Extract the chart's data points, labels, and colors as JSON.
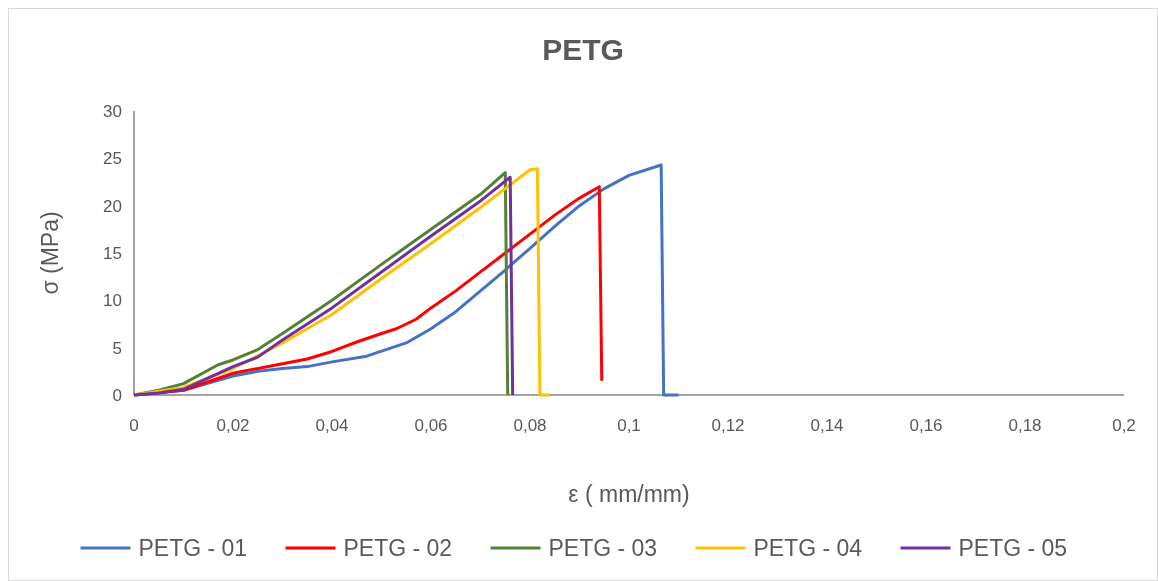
{
  "chart_data": {
    "type": "line",
    "title": "PETG",
    "xlabel": "ε ( mm/mm)",
    "ylabel": "σ (MPa)",
    "xlim": [
      0,
      0.2
    ],
    "ylim": [
      0,
      30
    ],
    "xticks": [
      0,
      {
        "value": 0.02,
        "label": "0,02"
      },
      {
        "value": 0.04,
        "label": "0,04"
      },
      {
        "value": 0.06,
        "label": "0,06"
      },
      {
        "value": 0.08,
        "label": "0,08"
      },
      {
        "value": 0.1,
        "label": "0,1"
      },
      {
        "value": 0.12,
        "label": "0,12"
      },
      {
        "value": 0.14,
        "label": "0,14"
      },
      {
        "value": 0.16,
        "label": "0,16"
      },
      {
        "value": 0.18,
        "label": "0,18"
      },
      {
        "value": 0.2,
        "label": "0,2"
      }
    ],
    "yticks": [
      0,
      5,
      10,
      15,
      20,
      25,
      30
    ],
    "grid": false,
    "legend": "bottom",
    "marker": "none",
    "line_style": "solid",
    "series": [
      {
        "name": "PETG - 01",
        "color": "#4472c4",
        "x": [
          0,
          0.01,
          0.02,
          0.025,
          0.03,
          0.035,
          0.04,
          0.047,
          0.055,
          0.06,
          0.065,
          0.07,
          0.075,
          0.08,
          0.085,
          0.09,
          0.095,
          0.1,
          0.1065,
          0.107,
          0.11
        ],
        "values": [
          0,
          0.5,
          2,
          2.5,
          2.8,
          3,
          3.5,
          4.1,
          5.5,
          7,
          8.8,
          11,
          13.2,
          15.5,
          17.8,
          20,
          21.8,
          23.2,
          24.3,
          0,
          0
        ]
      },
      {
        "name": "PETG - 02",
        "color": "#ff0000",
        "x": [
          0,
          0.01,
          0.02,
          0.03,
          0.035,
          0.04,
          0.045,
          0.05,
          0.053,
          0.057,
          0.06,
          0.065,
          0.07,
          0.075,
          0.08,
          0.085,
          0.09,
          0.094,
          0.0945
        ],
        "values": [
          0,
          0.5,
          2.3,
          3.3,
          3.8,
          4.6,
          5.6,
          6.5,
          7,
          8,
          9.2,
          11,
          13,
          15,
          17,
          19,
          20.8,
          22,
          1.5
        ]
      },
      {
        "name": "PETG - 03",
        "color": "#548235",
        "x": [
          0,
          0.005,
          0.01,
          0.017,
          0.02,
          0.025,
          0.03,
          0.04,
          0.05,
          0.06,
          0.07,
          0.075,
          0.0755
        ],
        "values": [
          0,
          0.5,
          1.2,
          3.2,
          3.7,
          4.8,
          6.5,
          10,
          13.8,
          17.5,
          21.2,
          23.5,
          0
        ]
      },
      {
        "name": "PETG - 04",
        "color": "#ffc000",
        "x": [
          0,
          0.01,
          0.02,
          0.03,
          0.04,
          0.05,
          0.06,
          0.07,
          0.075,
          0.08,
          0.0815,
          0.082,
          0.084
        ],
        "values": [
          0,
          0.8,
          2.8,
          5.5,
          8.5,
          12.3,
          16,
          19.8,
          21.8,
          23.8,
          23.9,
          0,
          0
        ]
      },
      {
        "name": "PETG - 05",
        "color": "#7030a0",
        "x": [
          0,
          0.005,
          0.01,
          0.02,
          0.025,
          0.03,
          0.04,
          0.05,
          0.06,
          0.07,
          0.076,
          0.0765
        ],
        "values": [
          0,
          0.2,
          0.6,
          3,
          4,
          5.8,
          9.2,
          13,
          16.8,
          20.5,
          23,
          0
        ]
      }
    ]
  }
}
